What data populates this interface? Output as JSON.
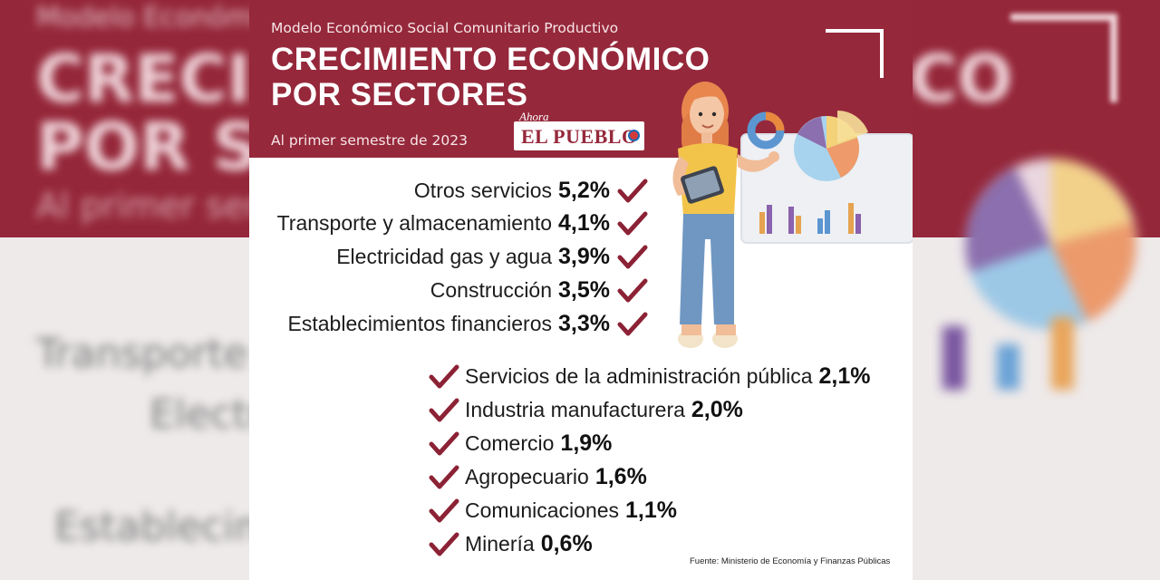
{
  "header": {
    "subtitle": "Modelo Económico Social Comunitario Productivo",
    "title_line1": "CRECIMIENTO ECONÓMICO",
    "title_line2": "POR SECTORES",
    "period": "Al primer semestre de 2023"
  },
  "logo": {
    "small": "Ahora",
    "main": "EL PUEBLO"
  },
  "source": "Fuente: Ministerio de Economía y Finanzas Públicas",
  "colors": {
    "brand": "#96283b",
    "check": "#8c2235",
    "text": "#1c1c1c"
  },
  "icons": [
    "check-icon",
    "woman-with-tablet-illustration",
    "pie-chart-icon",
    "donut-chart-icon",
    "bar-chart-icon"
  ],
  "chart_data": {
    "type": "table",
    "title": "CRECIMIENTO ECONÓMICO POR SECTORES",
    "subtitle": "Al primer semestre de 2023",
    "categories": [
      "Otros servicios",
      "Transporte y almacenamiento",
      "Electricidad gas y agua",
      "Construcción",
      "Establecimientos financieros",
      "Servicios de la administración pública",
      "Industria manufacturera",
      "Comercio",
      "Agropecuario",
      "Comunicaciones",
      "Minería"
    ],
    "values": [
      5.2,
      4.1,
      3.9,
      3.5,
      3.3,
      2.1,
      2.0,
      1.9,
      1.6,
      1.1,
      0.6
    ],
    "value_labels": [
      "5,2%",
      "4,1%",
      "3,9%",
      "3,5%",
      "3,3%",
      "2,1%",
      "2,0%",
      "1,9%",
      "1,6%",
      "1,1%",
      "0,6%"
    ],
    "unit": "%"
  }
}
